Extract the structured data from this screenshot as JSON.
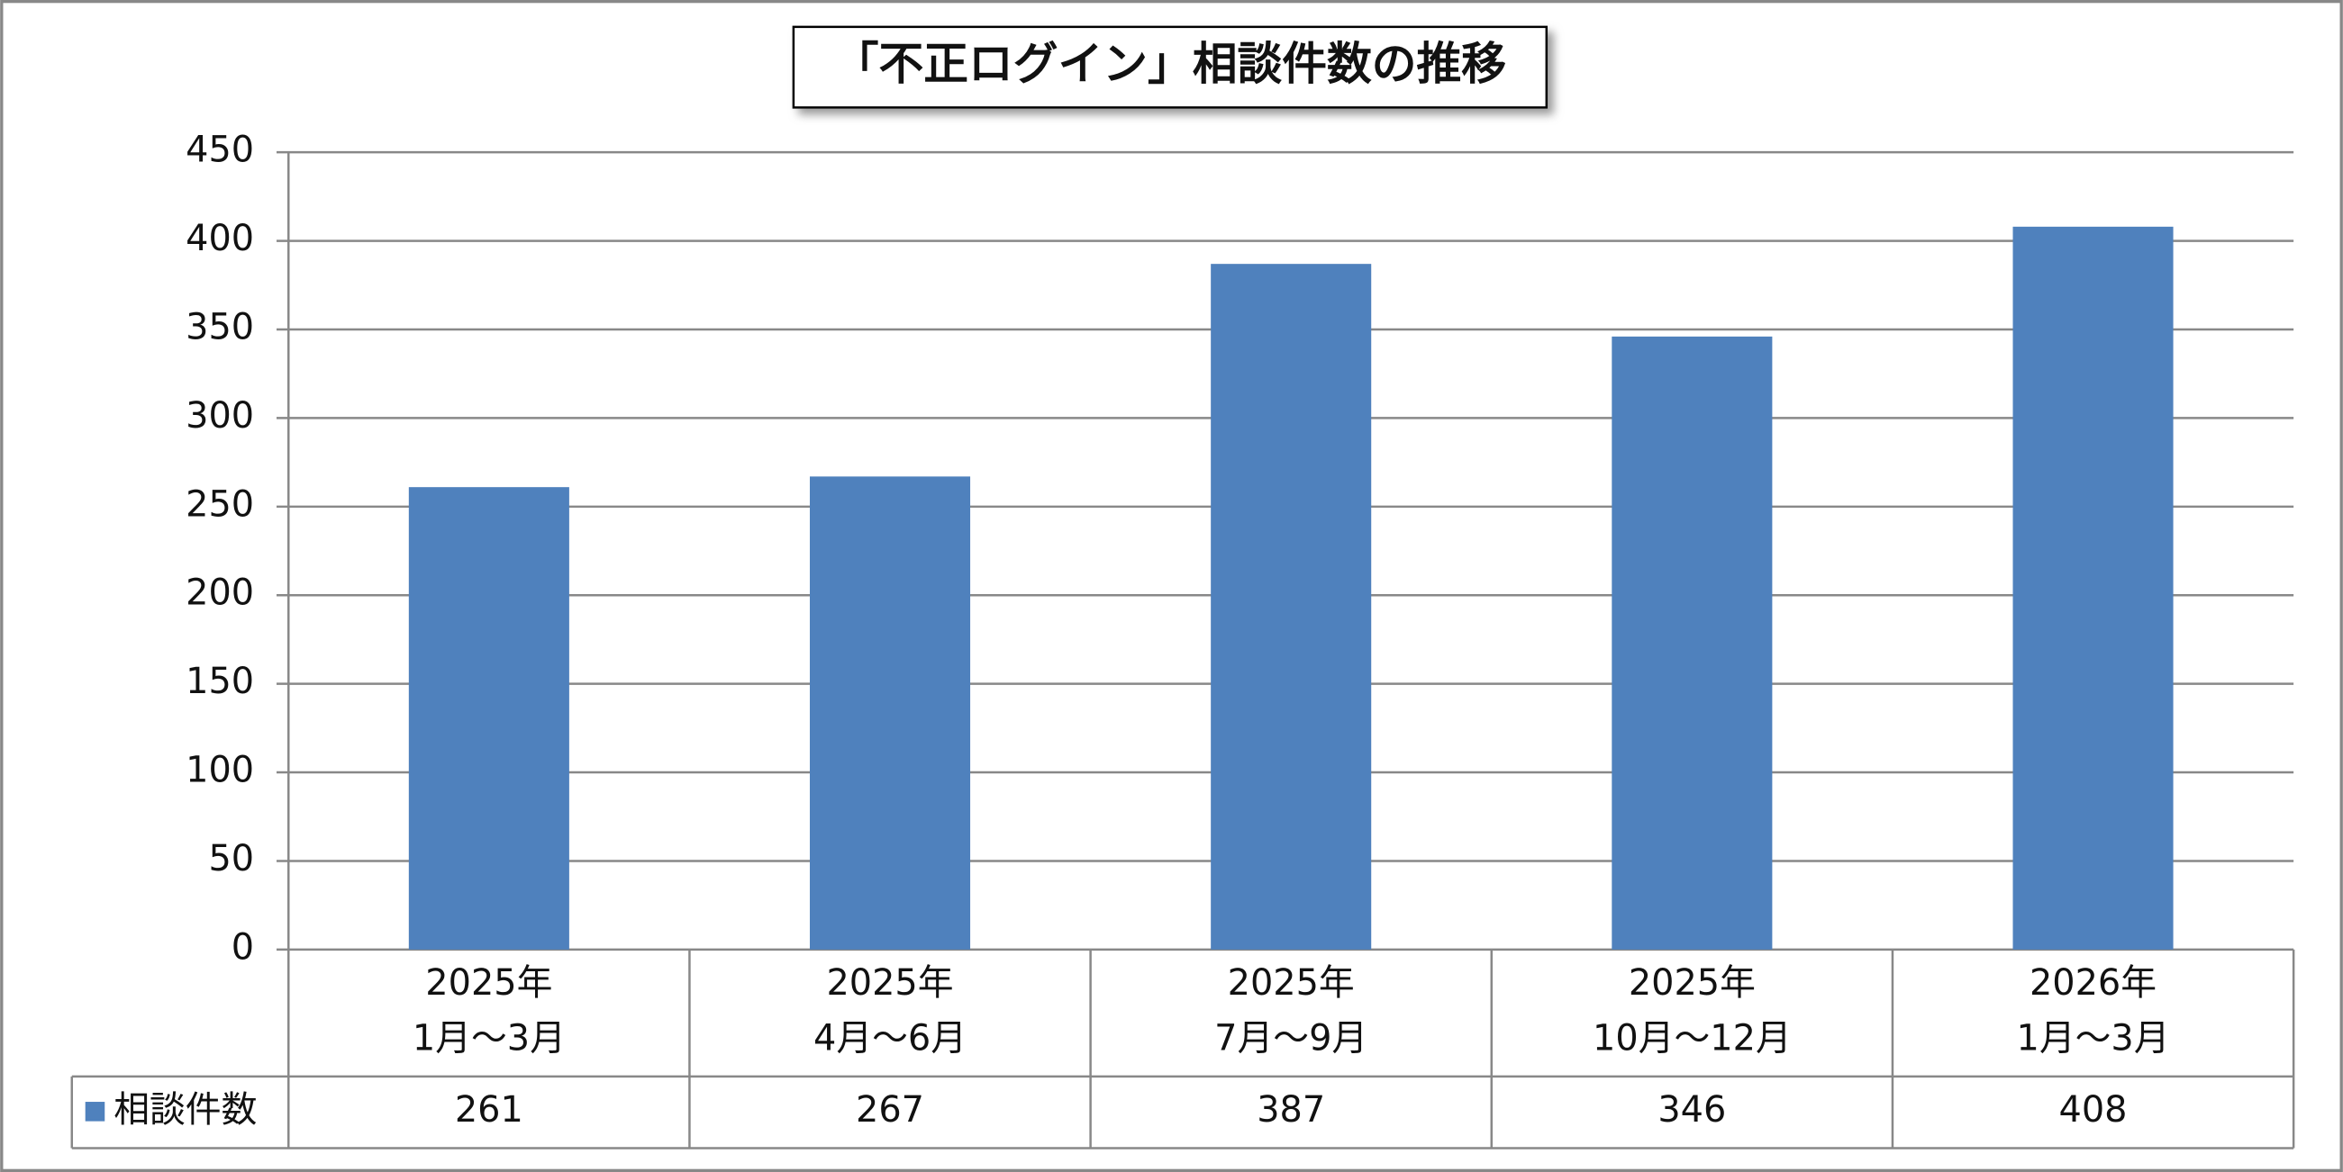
{
  "chart_data": {
    "type": "bar",
    "title": "「不正ログイン」相談件数の推移",
    "categories": [
      [
        "2025年",
        "1月～3月"
      ],
      [
        "2025年",
        "4月～6月"
      ],
      [
        "2025年",
        "7月～9月"
      ],
      [
        "2025年",
        "10月～12月"
      ],
      [
        "2026年",
        "1月～3月"
      ]
    ],
    "series": [
      {
        "name": "相談件数",
        "color": "#4f81bd",
        "values": [
          261,
          267,
          387,
          346,
          408
        ]
      }
    ],
    "ylim": [
      0,
      450
    ],
    "yticks": [
      0,
      50,
      100,
      150,
      200,
      250,
      300,
      350,
      400,
      450
    ],
    "grid": true
  }
}
